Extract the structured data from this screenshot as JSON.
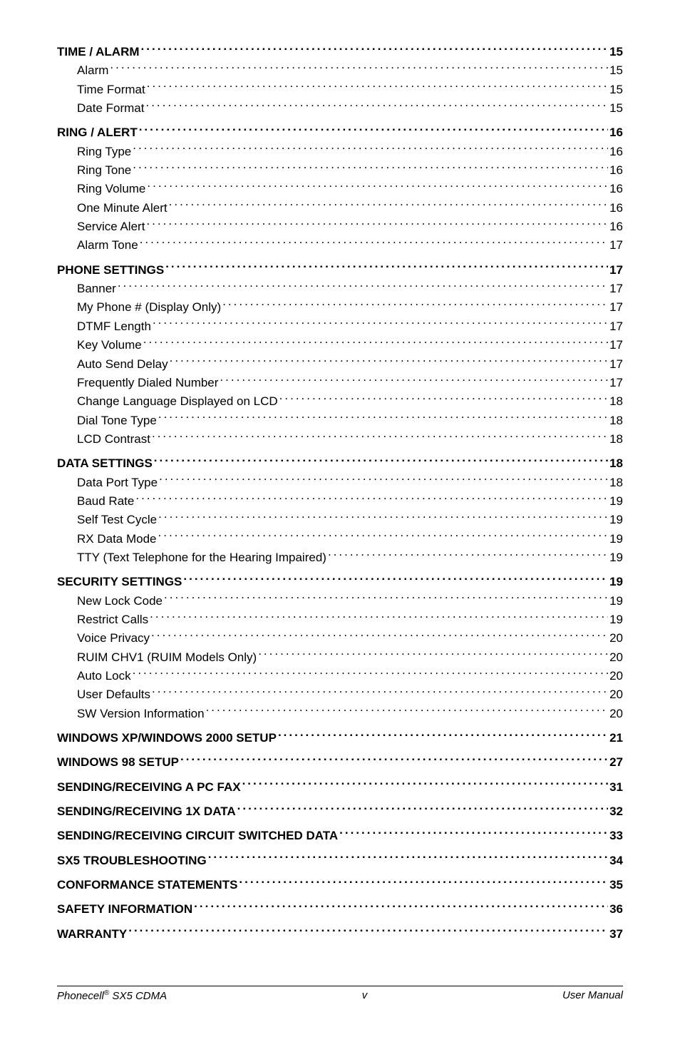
{
  "toc": [
    {
      "level": 0,
      "label": "TIME / ALARM ",
      "page": "15",
      "spaced": false
    },
    {
      "level": 1,
      "label": "Alarm",
      "page": "15"
    },
    {
      "level": 1,
      "label": "Time Format",
      "page": "15"
    },
    {
      "level": 1,
      "label": "Date Format",
      "page": "15"
    },
    {
      "level": 0,
      "label": "RING / ALERT ",
      "page": "16",
      "spaced": true
    },
    {
      "level": 1,
      "label": "Ring Type",
      "page": "16"
    },
    {
      "level": 1,
      "label": "Ring Tone",
      "page": "16"
    },
    {
      "level": 1,
      "label": "Ring Volume ",
      "page": "16"
    },
    {
      "level": 1,
      "label": "One Minute Alert ",
      "page": "16"
    },
    {
      "level": 1,
      "label": "Service Alert",
      "page": "16"
    },
    {
      "level": 1,
      "label": "Alarm Tone",
      "page": "17"
    },
    {
      "level": 0,
      "label": "PHONE SETTINGS",
      "page": "17",
      "spaced": true
    },
    {
      "level": 1,
      "label": "Banner ",
      "page": "17"
    },
    {
      "level": 1,
      "label": "My Phone # (Display Only)",
      "page": "17"
    },
    {
      "level": 1,
      "label": "DTMF Length",
      "page": "17"
    },
    {
      "level": 1,
      "label": "Key Volume",
      "page": "17"
    },
    {
      "level": 1,
      "label": "Auto Send Delay",
      "page": "17"
    },
    {
      "level": 1,
      "label": "Frequently Dialed Number",
      "page": "17"
    },
    {
      "level": 1,
      "label": "Change Language Displayed on LCD ",
      "page": "18"
    },
    {
      "level": 1,
      "label": "Dial Tone Type ",
      "page": "18"
    },
    {
      "level": 1,
      "label": "LCD Contrast ",
      "page": "18"
    },
    {
      "level": 0,
      "label": "DATA SETTINGS ",
      "page": "18",
      "spaced": true
    },
    {
      "level": 1,
      "label": "Data Port Type",
      "page": "18"
    },
    {
      "level": 1,
      "label": "Baud Rate",
      "page": "19"
    },
    {
      "level": 1,
      "label": "Self Test Cycle ",
      "page": "19"
    },
    {
      "level": 1,
      "label": "RX Data Mode ",
      "page": "19"
    },
    {
      "level": 1,
      "label": "TTY (Text Telephone for the Hearing Impaired) ",
      "page": "19"
    },
    {
      "level": 0,
      "label": "SECURITY SETTINGS",
      "page": "19",
      "spaced": true
    },
    {
      "level": 1,
      "label": "New Lock Code ",
      "page": "19"
    },
    {
      "level": 1,
      "label": "Restrict Calls",
      "page": "19"
    },
    {
      "level": 1,
      "label": "Voice Privacy ",
      "page": "20"
    },
    {
      "level": 1,
      "label": "RUIM CHV1 (RUIM Models Only) ",
      "page": "20"
    },
    {
      "level": 1,
      "label": "Auto Lock",
      "page": "20"
    },
    {
      "level": 1,
      "label": "User Defaults ",
      "page": "20"
    },
    {
      "level": 1,
      "label": "SW Version Information ",
      "page": "20"
    },
    {
      "level": 0,
      "label": "WINDOWS XP/WINDOWS 2000 SETUP ",
      "page": "21",
      "spaced": true
    },
    {
      "level": 0,
      "label": "WINDOWS 98 SETUP ",
      "page": "27",
      "spaced": true
    },
    {
      "level": 0,
      "label": "SENDING/RECEIVING A PC FAX",
      "page": "31",
      "spaced": true
    },
    {
      "level": 0,
      "label": "SENDING/RECEIVING 1X DATA",
      "page": "32",
      "spaced": true
    },
    {
      "level": 0,
      "label": "SENDING/RECEIVING CIRCUIT SWITCHED DATA",
      "page": "33",
      "spaced": true
    },
    {
      "level": 0,
      "label": "SX5 TROUBLESHOOTING ",
      "page": "34",
      "spaced": true
    },
    {
      "level": 0,
      "label": "CONFORMANCE STATEMENTS",
      "page": "35",
      "spaced": true
    },
    {
      "level": 0,
      "label": "SAFETY INFORMATION ",
      "page": "36",
      "spaced": true
    },
    {
      "level": 0,
      "label": "WARRANTY",
      "page": "37",
      "spaced": true
    }
  ],
  "footer": {
    "left_product": "Phonecell",
    "left_reg": "®",
    "left_model": " SX5 CDMA",
    "center": "v",
    "right": "User Manual"
  }
}
